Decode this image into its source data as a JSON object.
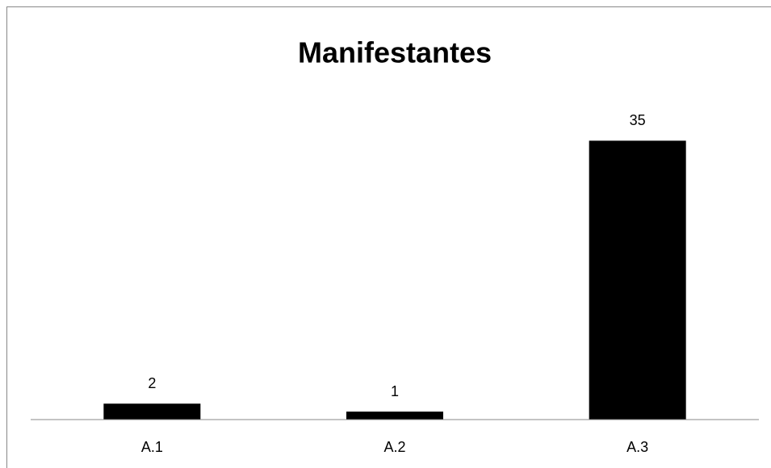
{
  "chart_data": {
    "type": "bar",
    "title": "Manifestantes",
    "categories": [
      "A.1",
      "A.2",
      "A.3"
    ],
    "values": [
      2,
      1,
      35
    ],
    "color": "#000000",
    "ylim": [
      0,
      40
    ]
  }
}
